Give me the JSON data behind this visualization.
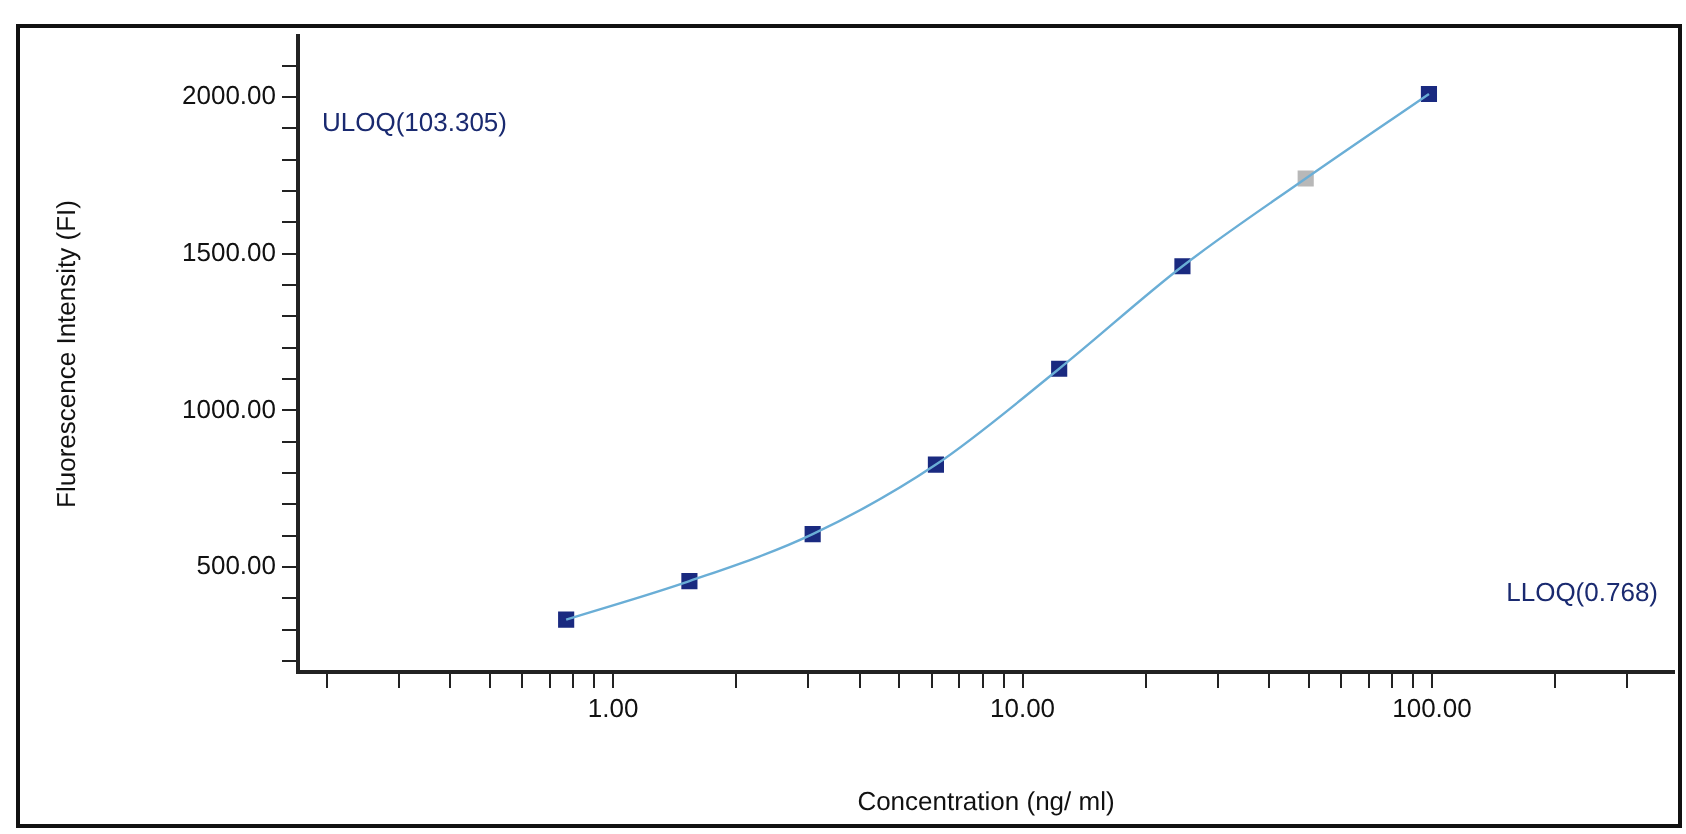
{
  "chart_data": {
    "type": "scatter",
    "xlabel": "Concentration (ng/ ml)",
    "ylabel": "Fluorescence Intensity (FI)",
    "log": "x",
    "grid": false,
    "legend": false,
    "marker": "square",
    "xlim": [
      0.17,
      390
    ],
    "ylim": [
      165,
      2195
    ],
    "xticks": [
      {
        "value": 0.2,
        "label": null
      },
      {
        "value": 0.3,
        "label": null
      },
      {
        "value": 0.4,
        "label": null
      },
      {
        "value": 0.5,
        "label": null
      },
      {
        "value": 0.6,
        "label": null
      },
      {
        "value": 0.7,
        "label": null
      },
      {
        "value": 0.8,
        "label": null
      },
      {
        "value": 0.9,
        "label": null
      },
      {
        "value": 1,
        "label": "1.00"
      },
      {
        "value": 2,
        "label": null
      },
      {
        "value": 3,
        "label": null
      },
      {
        "value": 4,
        "label": null
      },
      {
        "value": 5,
        "label": null
      },
      {
        "value": 6,
        "label": null
      },
      {
        "value": 7,
        "label": null
      },
      {
        "value": 8,
        "label": null
      },
      {
        "value": 9,
        "label": null
      },
      {
        "value": 10,
        "label": "10.00"
      },
      {
        "value": 20,
        "label": null
      },
      {
        "value": 30,
        "label": null
      },
      {
        "value": 40,
        "label": null
      },
      {
        "value": 50,
        "label": null
      },
      {
        "value": 60,
        "label": null
      },
      {
        "value": 70,
        "label": null
      },
      {
        "value": 80,
        "label": null
      },
      {
        "value": 90,
        "label": null
      },
      {
        "value": 100,
        "label": "100.00"
      },
      {
        "value": 200,
        "label": null
      },
      {
        "value": 300,
        "label": null
      }
    ],
    "yticks": [
      {
        "value": 200,
        "label": null
      },
      {
        "value": 300,
        "label": null
      },
      {
        "value": 400,
        "label": null
      },
      {
        "value": 500,
        "label": "500.00"
      },
      {
        "value": 600,
        "label": null
      },
      {
        "value": 700,
        "label": null
      },
      {
        "value": 800,
        "label": null
      },
      {
        "value": 900,
        "label": null
      },
      {
        "value": 1000,
        "label": "1000.00"
      },
      {
        "value": 1100,
        "label": null
      },
      {
        "value": 1200,
        "label": null
      },
      {
        "value": 1300,
        "label": null
      },
      {
        "value": 1400,
        "label": null
      },
      {
        "value": 1500,
        "label": "1500.00"
      },
      {
        "value": 1600,
        "label": null
      },
      {
        "value": 1700,
        "label": null
      },
      {
        "value": 1800,
        "label": null
      },
      {
        "value": 1900,
        "label": null
      },
      {
        "value": 2000,
        "label": "2000.00"
      },
      {
        "value": 2100,
        "label": null
      }
    ],
    "series": [
      {
        "type": "line",
        "marker": "none",
        "color": "#6aaed6",
        "x": [
          0.768,
          1.536,
          3.072,
          6.144,
          12.288,
          24.576,
          49.152,
          98.304
        ],
        "values": [
          332,
          455,
          605,
          827,
          1133,
          1460,
          1740,
          2010
        ]
      },
      {
        "type": "scatter",
        "color": "#1a2a80",
        "x": [
          0.768,
          1.536,
          3.072,
          6.144,
          12.288,
          24.576,
          98.304
        ],
        "values": [
          332,
          455,
          605,
          827,
          1133,
          1460,
          2010
        ]
      },
      {
        "type": "scatter",
        "color": "#b8b8b8",
        "x": [
          49.152
        ],
        "values": [
          1740
        ]
      }
    ],
    "annotations": [
      "ULOQ(103.305)",
      "LLOQ(0.768)"
    ]
  }
}
